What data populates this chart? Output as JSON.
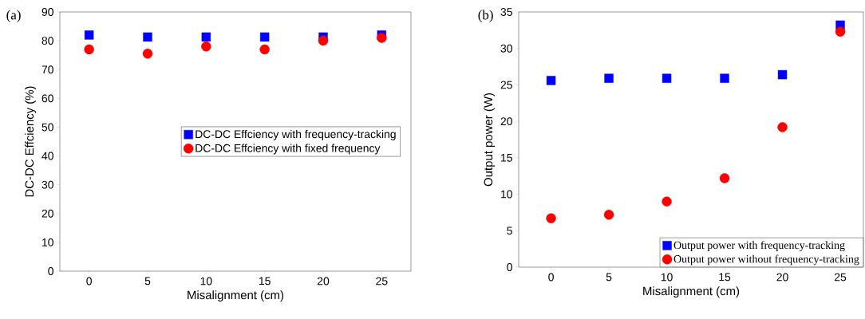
{
  "chart_data": [
    {
      "type": "scatter",
      "title": "(a)",
      "xlabel": "Misalignment (cm)",
      "ylabel": "DC-DC Effciency (%)",
      "xlim": [
        -2.5,
        27.5
      ],
      "ylim": [
        0,
        90
      ],
      "xticks": [
        0,
        5,
        10,
        15,
        20,
        25
      ],
      "yticks": [
        0,
        10,
        20,
        30,
        40,
        50,
        60,
        70,
        80,
        90
      ],
      "legend": "right",
      "grid": false,
      "series": [
        {
          "name": "DC-DC Effciency with frequency-tracking",
          "color": "#0000ff",
          "marker": "square",
          "x": [
            0,
            5,
            10,
            15,
            20,
            25
          ],
          "values": [
            82,
            81.3,
            81.3,
            81.3,
            81.3,
            82
          ]
        },
        {
          "name": "DC-DC Effciency with fixed frequency",
          "color": "#ff0000",
          "marker": "circle",
          "x": [
            0,
            5,
            10,
            15,
            20,
            25
          ],
          "values": [
            77,
            75.5,
            78,
            77,
            80,
            81
          ]
        }
      ]
    },
    {
      "type": "scatter",
      "title": "(b)",
      "xlabel": "Misalignment (cm)",
      "ylabel": "Output power (W)",
      "xlim": [
        -2.8,
        27
      ],
      "ylim": [
        0,
        35
      ],
      "xticks": [
        0,
        5,
        10,
        15,
        20,
        25
      ],
      "yticks": [
        0,
        5,
        10,
        15,
        20,
        25,
        30,
        35
      ],
      "legend": "bottom right",
      "grid": false,
      "series": [
        {
          "name": "Output power with frequency-tracking",
          "color": "#0000ff",
          "marker": "square",
          "x": [
            0,
            5,
            10,
            15,
            20,
            25
          ],
          "values": [
            25.6,
            25.9,
            25.9,
            25.9,
            26.4,
            33.2
          ]
        },
        {
          "name": "Output power without frequency-tracking",
          "color": "#ff0000",
          "marker": "circle",
          "x": [
            0,
            5,
            10,
            15,
            20,
            25
          ],
          "values": [
            6.7,
            7.2,
            9.0,
            12.2,
            19.2,
            32.3
          ]
        }
      ]
    }
  ]
}
